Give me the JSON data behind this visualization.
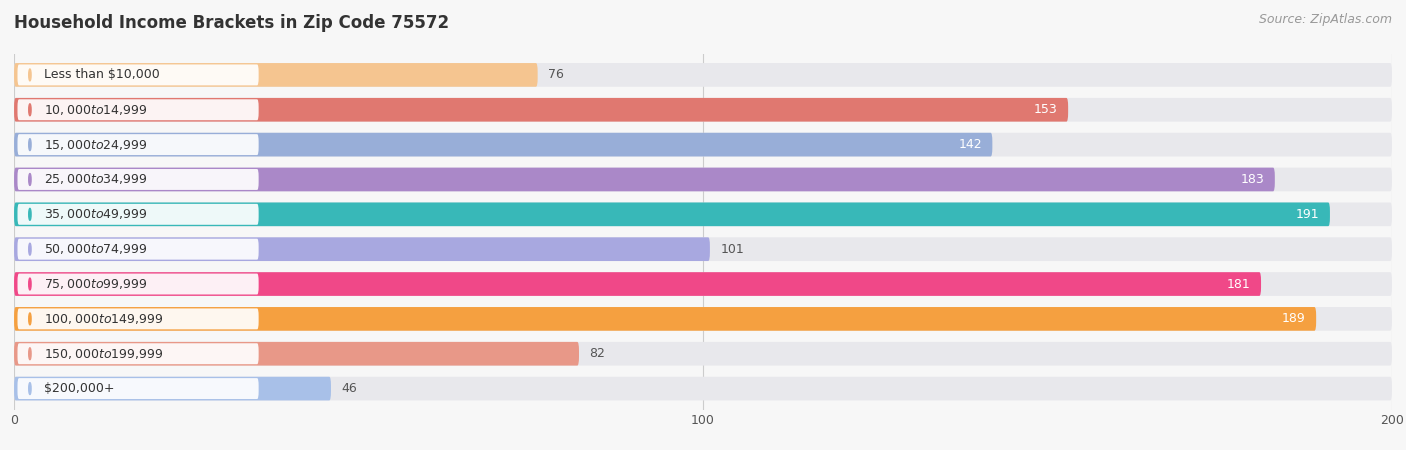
{
  "title": "Household Income Brackets in Zip Code 75572",
  "source": "Source: ZipAtlas.com",
  "categories": [
    "Less than $10,000",
    "$10,000 to $14,999",
    "$15,000 to $24,999",
    "$25,000 to $34,999",
    "$35,000 to $49,999",
    "$50,000 to $74,999",
    "$75,000 to $99,999",
    "$100,000 to $149,999",
    "$150,000 to $199,999",
    "$200,000+"
  ],
  "values": [
    76,
    153,
    142,
    183,
    191,
    101,
    181,
    189,
    82,
    46
  ],
  "bar_colors": [
    "#f5c590",
    "#e07870",
    "#98aed8",
    "#aa88c8",
    "#38b8b8",
    "#a8a8e0",
    "#f04888",
    "#f5a040",
    "#e89888",
    "#a8c0e8"
  ],
  "value_inside": [
    false,
    true,
    true,
    true,
    true,
    false,
    true,
    true,
    false,
    false
  ],
  "xlim": [
    0,
    200
  ],
  "background_color": "#f7f7f7",
  "bar_bg_color": "#e8e8ec",
  "bar_height": 0.68,
  "title_fontsize": 12,
  "source_fontsize": 9,
  "label_fontsize": 9,
  "value_fontsize": 9,
  "tick_fontsize": 9
}
